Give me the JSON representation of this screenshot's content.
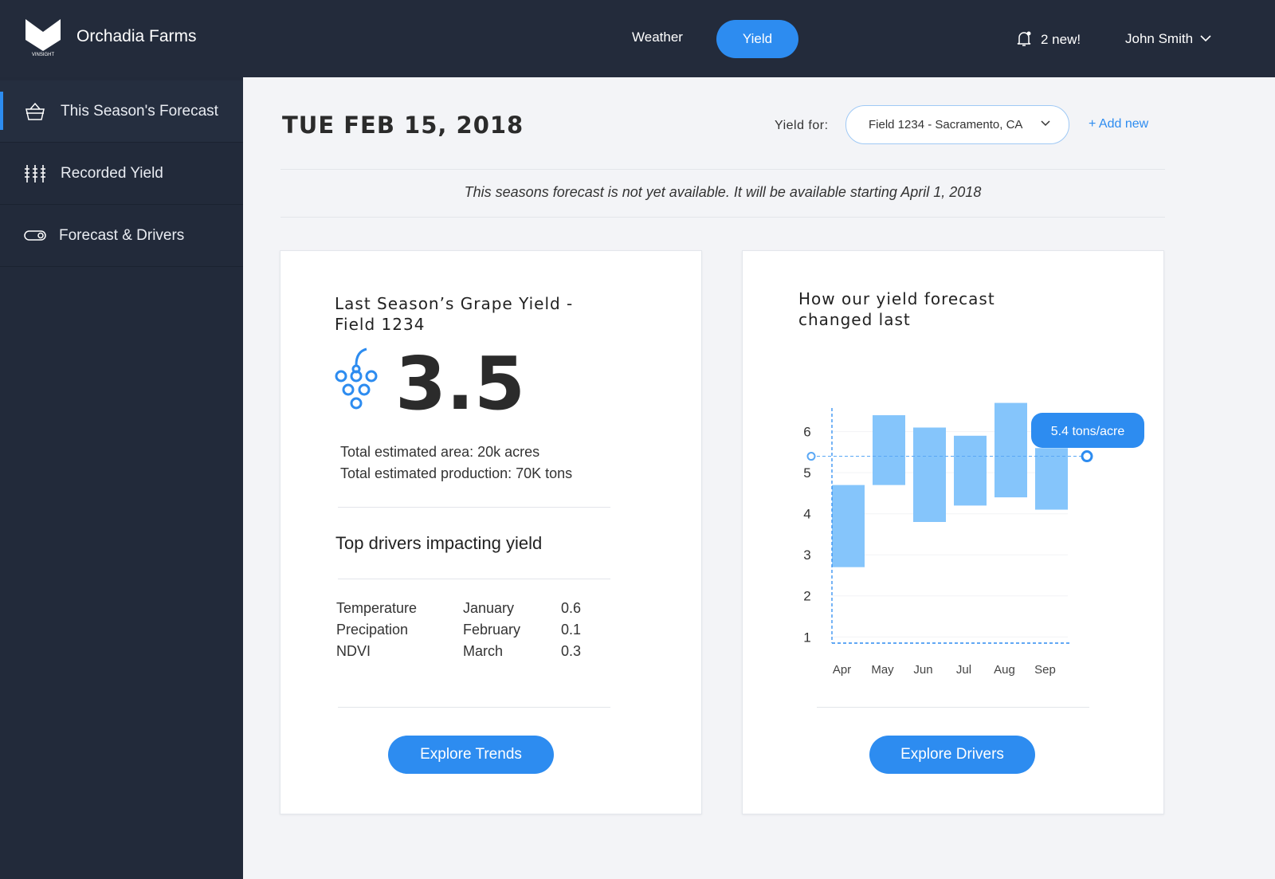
{
  "header": {
    "brand": "Orchadia Farms",
    "logo_text": "VINSIGHT",
    "tabs": [
      "Weather",
      "Yield"
    ],
    "notifications": "2 new!",
    "user": "John Smith"
  },
  "sidebar": [
    "This Season's Forecast",
    "Recorded Yield",
    "Forecast & Drivers"
  ],
  "date": "TUE FEB 15, 2018",
  "yield_for_label": "Yield for:",
  "field_select": "Field 1234 - Sacramento, CA",
  "add_new": "+ Add new",
  "notice": "This seasons forecast is not yet available. It will be available starting April 1, 2018",
  "yield_card": {
    "title": "Last Season’s Grape Yield - Field 1234",
    "value": 3.5,
    "area": "Total estimated area: 20k acres",
    "production": "Total estimated production: 70K tons",
    "drivers_title": "Top drivers impacting yield",
    "drivers": [
      [
        "Temperature",
        "January",
        0.6
      ],
      [
        "Precipation",
        "February",
        0.1
      ],
      [
        "NDVI",
        "March",
        0.3
      ]
    ],
    "button": "Explore Trends"
  },
  "forecast_card": {
    "title": "How our yield forecast changed last",
    "chart": {
      "type": "floating-bar",
      "categories": [
        "Apr",
        "May",
        "Jun",
        "Jul",
        "Aug",
        "Sep"
      ],
      "lows": [
        2.7,
        4.7,
        3.8,
        4.2,
        4.4,
        4.1
      ],
      "highs": [
        4.7,
        6.4,
        6.1,
        5.9,
        6.7,
        5.6
      ],
      "color": "#85c5fb",
      "ylim": [
        0.85,
        6.75
      ],
      "yticks": [
        1,
        2,
        3,
        4,
        5,
        6
      ],
      "reference": 5.4,
      "reference_label": "5.4 tons/acre"
    },
    "button": "Explore Drivers"
  }
}
